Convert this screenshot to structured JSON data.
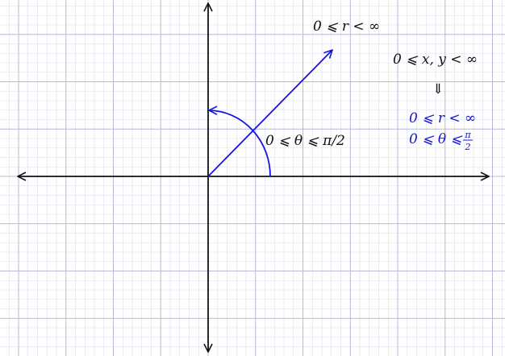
{
  "colors": {
    "grid_minor": "#dcdcf0",
    "grid_major": "#b8b8d8",
    "axis": "#111111",
    "accent": "#1515dd",
    "text": "#111111"
  },
  "labels": {
    "radius_range": "0 ⩽ r < ∞",
    "angle_range": "0 ⩽ θ ⩽ π/2",
    "xy_range": "0 ⩽ x, y < ∞",
    "implies_arrow": "⇓",
    "radius_range_result": "0 ⩽ r < ∞",
    "angle_range_result_prefix": "0 ⩽ θ ⩽",
    "angle_fraction_numerator": "π",
    "angle_fraction_denominator": "2"
  },
  "figure": {
    "ray_angle_degrees": 45,
    "arc_span_degrees": [
      0,
      90
    ]
  }
}
